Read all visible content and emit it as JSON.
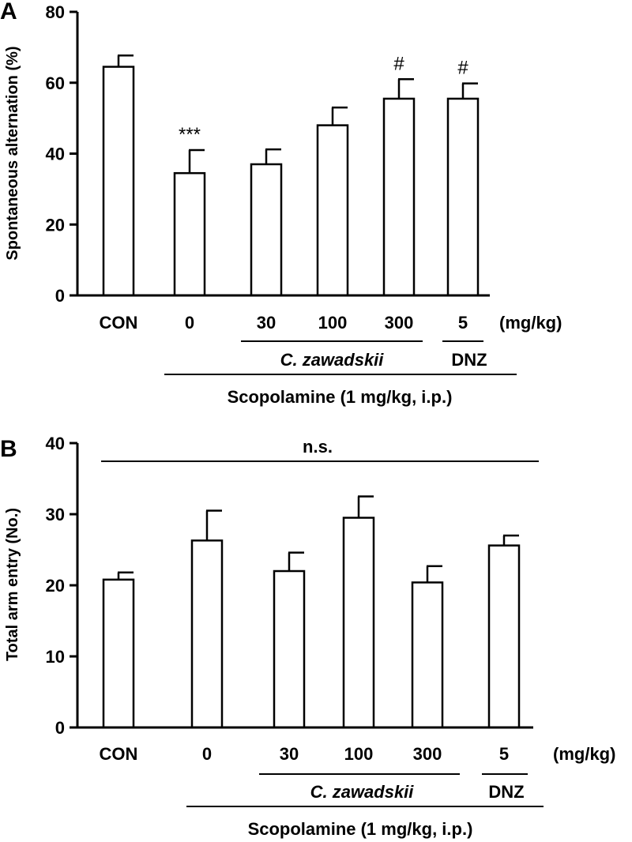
{
  "chart_data": [
    {
      "type": "bar",
      "panel": "A",
      "ylabel": "Spontaneous alternation (%)",
      "ylim": [
        0,
        80
      ],
      "yticks": [
        0,
        20,
        40,
        60,
        80
      ],
      "categories": [
        "CON",
        "0",
        "30",
        "100",
        "300",
        "5"
      ],
      "values": [
        64.5,
        34.5,
        37,
        48,
        55.5,
        55.5
      ],
      "errors": [
        3.2,
        6.5,
        4.2,
        5.0,
        5.5,
        4.3
      ],
      "annotations": [
        "",
        "***",
        "",
        "",
        "#",
        "#"
      ],
      "unit": "(mg/kg)",
      "groups": {
        "drug": "C. zawadskii",
        "reference": "DNZ",
        "treatment": "Scopolamine (1 mg/kg, i.p.)"
      },
      "grid": false
    },
    {
      "type": "bar",
      "panel": "B",
      "ylabel": "Total arm entry (No.)",
      "ylim": [
        0,
        40
      ],
      "yticks": [
        0,
        10,
        20,
        30,
        40
      ],
      "categories": [
        "CON",
        "0",
        "30",
        "100",
        "300",
        "5"
      ],
      "values": [
        20.8,
        26.3,
        22.0,
        29.5,
        20.4,
        25.6
      ],
      "errors": [
        1.0,
        4.2,
        2.6,
        3.0,
        2.3,
        1.4
      ],
      "significance": "n.s.",
      "unit": "(mg/kg)",
      "groups": {
        "drug": "C. zawadskii",
        "reference": "DNZ",
        "treatment": "Scopolamine (1 mg/kg, i.p.)"
      },
      "grid": false
    }
  ]
}
